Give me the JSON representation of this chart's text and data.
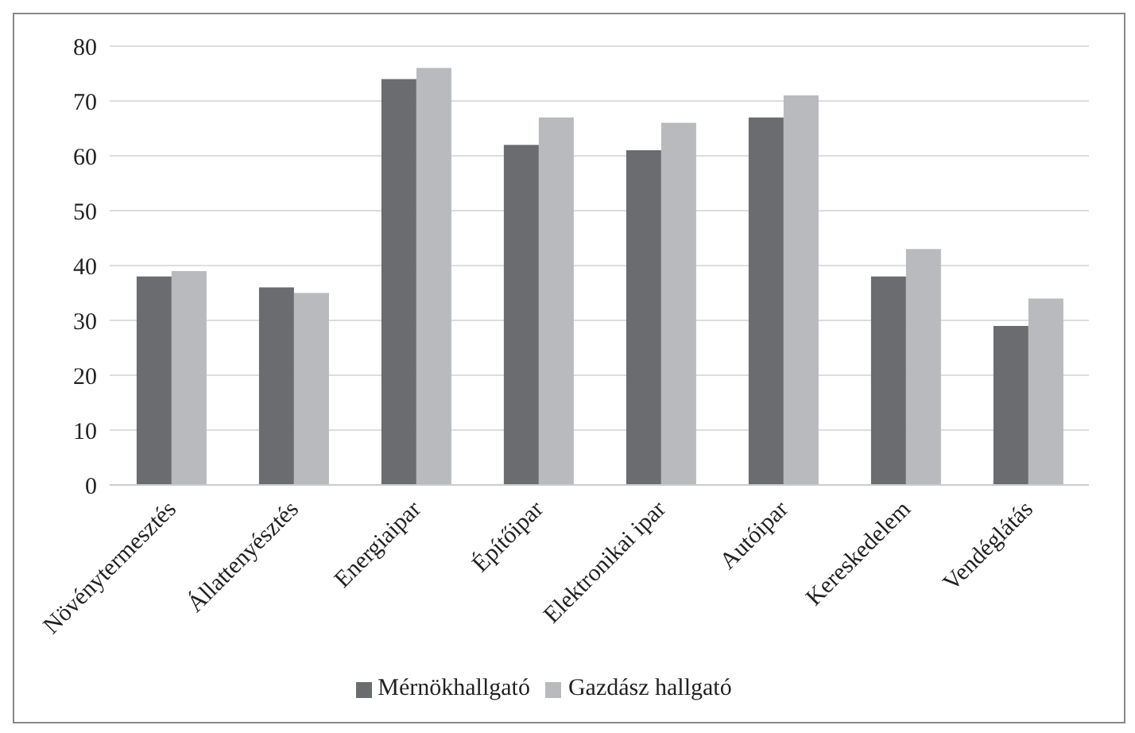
{
  "chart_data": {
    "type": "bar",
    "categories": [
      "Növénytermesztés",
      "Állattenyésztés",
      "Energiaipar",
      "Építőipar",
      "Elektronikai ipar",
      "Autóipar",
      "Kereskedelem",
      "Vendéglátás"
    ],
    "series": [
      {
        "name": "Mérnökhallgató",
        "color": "#6b6c70",
        "values": [
          38,
          36,
          74,
          62,
          61,
          67,
          38,
          29
        ]
      },
      {
        "name": "Gazdász hallgató",
        "color": "#b9babd",
        "values": [
          39,
          35,
          76,
          67,
          66,
          71,
          43,
          34
        ]
      }
    ],
    "ylim": [
      0,
      80
    ],
    "yticks": [
      0,
      10,
      20,
      30,
      40,
      50,
      60,
      70,
      80
    ],
    "grid": "y",
    "legend": "bottom"
  }
}
